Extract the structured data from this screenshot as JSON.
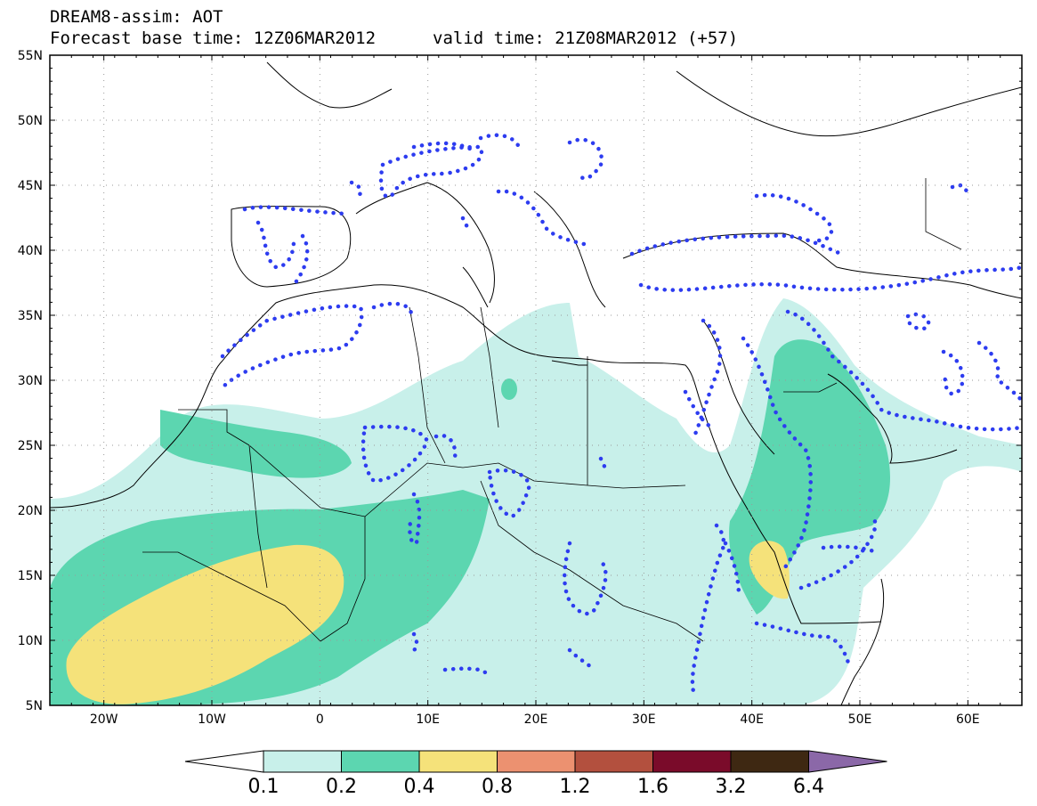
{
  "title": {
    "line1": "DREAM8-assim: AOT",
    "base": "Forecast base time: 12Z06MAR2012",
    "valid": "valid time: 21Z08MAR2012 (+57)"
  },
  "axes": {
    "lat_labels": [
      "55N",
      "50N",
      "45N",
      "40N",
      "35N",
      "30N",
      "25N",
      "20N",
      "15N",
      "10N",
      "5N"
    ],
    "lon_labels": [
      "20W",
      "10W",
      "0",
      "10E",
      "20E",
      "30E",
      "40E",
      "50E",
      "60E"
    ],
    "lat_range": [
      5,
      55
    ],
    "lon_range": [
      -25,
      65
    ]
  },
  "colorbar": {
    "levels": [
      "0.1",
      "0.2",
      "0.4",
      "0.8",
      "1.2",
      "1.6",
      "3.2",
      "6.4"
    ],
    "colors": [
      "#ffffff",
      "#c8f0ea",
      "#5cd6b0",
      "#f5e27a",
      "#ec9170",
      "#b3503e",
      "#7a0b2a",
      "#3e2812",
      "#8b68a8"
    ]
  }
}
